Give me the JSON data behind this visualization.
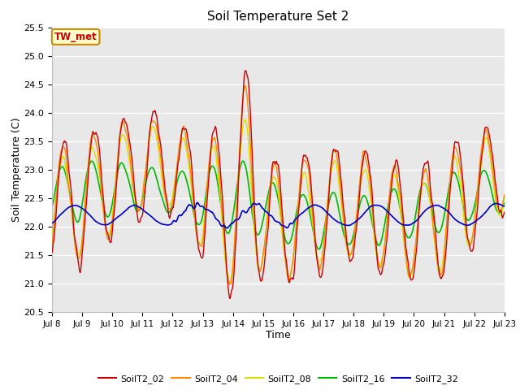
{
  "title": "Soil Temperature Set 2",
  "xlabel": "Time",
  "ylabel": "Soil Temperature (C)",
  "figure_bg": "#ffffff",
  "plot_bg_color": "#e8e8e8",
  "ylim": [
    20.5,
    25.5
  ],
  "x_start": 8,
  "x_end": 23,
  "x_ticks": [
    8,
    9,
    10,
    11,
    12,
    13,
    14,
    15,
    16,
    17,
    18,
    19,
    20,
    21,
    22,
    23
  ],
  "x_tick_labels": [
    "Jul 8",
    "Jul 9",
    "Jul 10",
    "Jul 11",
    "Jul 12",
    "Jul 13",
    "Jul 14",
    "Jul 15",
    "Jul 16",
    "Jul 17",
    "Jul 18",
    "Jul 19",
    "Jul 20",
    "Jul 21",
    "Jul 22",
    "Jul 23"
  ],
  "series_colors": {
    "SoilT2_02": "#cc0000",
    "SoilT2_04": "#ff8800",
    "SoilT2_08": "#dddd00",
    "SoilT2_16": "#00bb00",
    "SoilT2_32": "#0000cc"
  },
  "annotation_text": "TW_met",
  "annotation_bg": "#ffffcc",
  "annotation_border": "#cc8800",
  "annotation_text_color": "#cc0000",
  "grid_color": "#ffffff",
  "yticks": [
    20.5,
    21.0,
    21.5,
    22.0,
    22.5,
    23.0,
    23.5,
    24.0,
    24.5,
    25.0,
    25.5
  ]
}
